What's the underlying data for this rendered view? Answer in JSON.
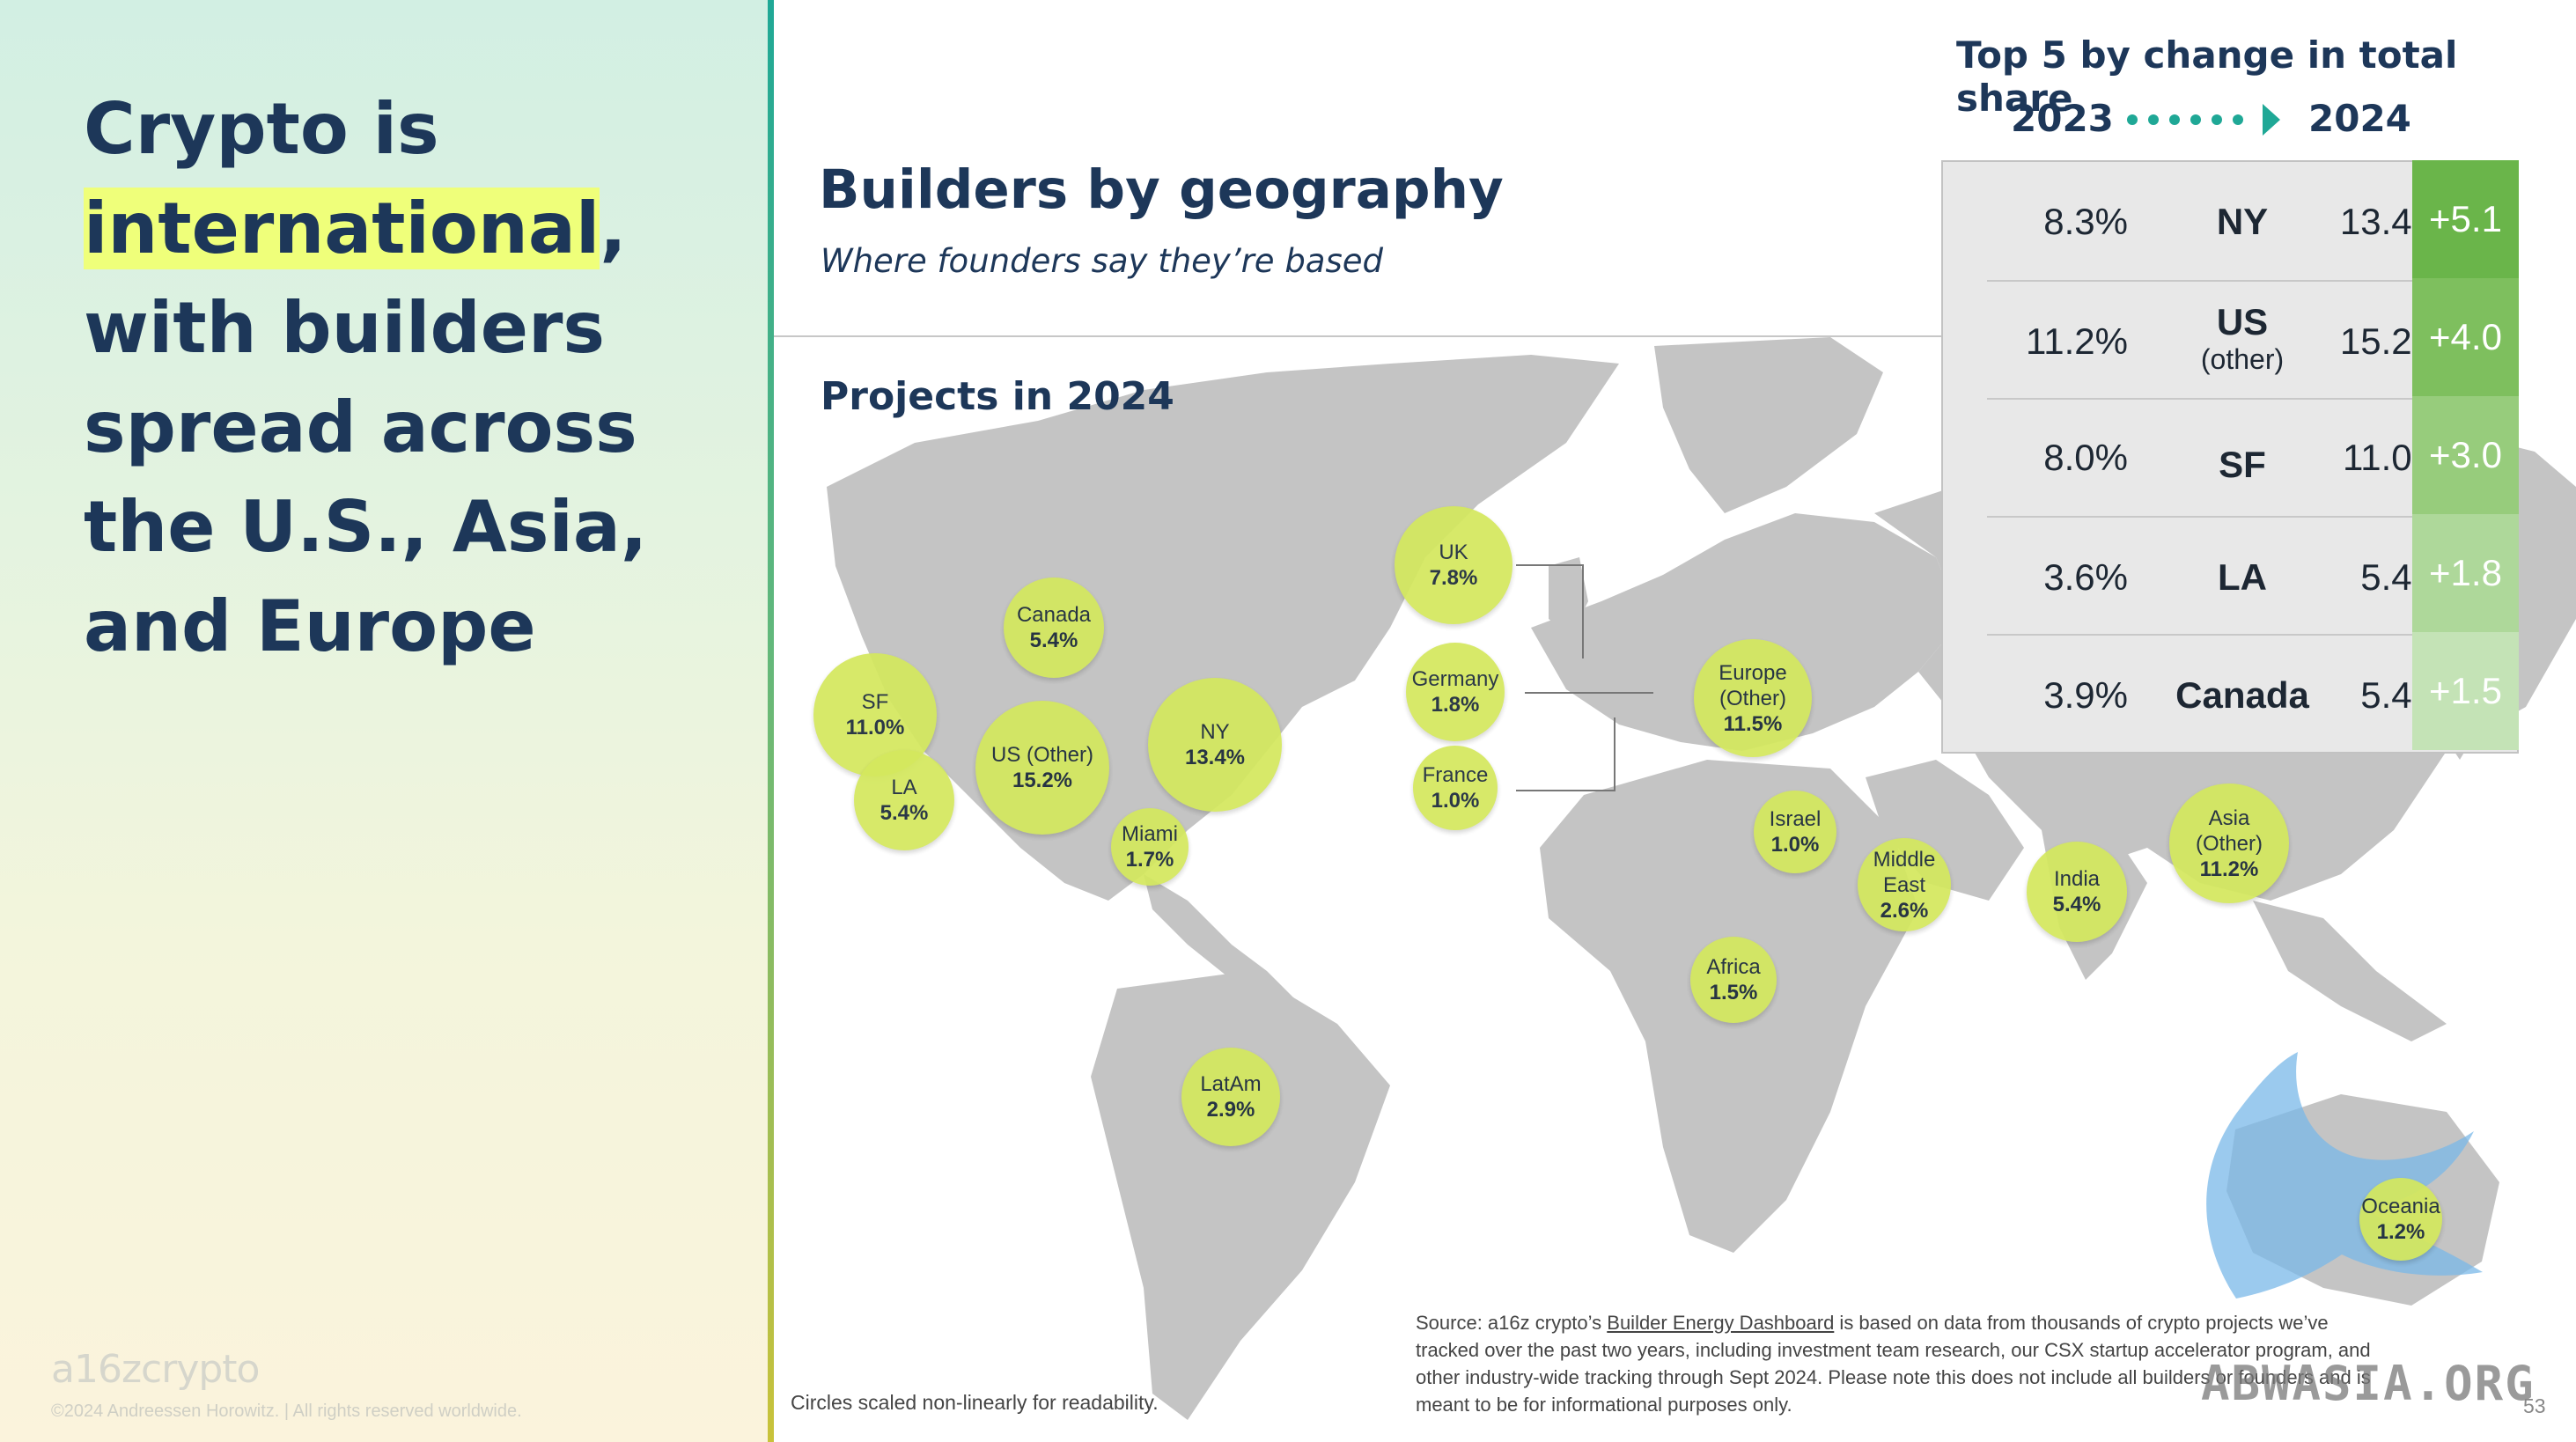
{
  "headline": {
    "before": "Crypto is",
    "highlight": "international",
    "after": ", with builders spread across the U.S., Asia, and Europe"
  },
  "footer": {
    "logo": "a16zcrypto",
    "copyright": "©2024 Andreessen Horowitz.  |  All rights reserved worldwide.",
    "note": "Circles scaled non-linearly for readability.",
    "source_pre": "Source: a16z crypto’s ",
    "source_link": "Builder Energy Dashboard",
    "source_post": " is based on data from thousands of crypto projects we’ve tracked over the past two years, including investment team research, our CSX startup accelerator program, and other industry-wide tracking through Sept 2024. Please note this does not include all builders or founders and is meant to be for informational purposes only.",
    "page_number": "53",
    "watermark": "ABWASIA.ORG"
  },
  "map": {
    "title": "Builders by geography",
    "subtitle": "Where founders say they’re based",
    "projects_label": "Projects in 2024",
    "regions": [
      {
        "name": "UK",
        "value": "7.8%"
      },
      {
        "name": "Canada",
        "value": "5.4%"
      },
      {
        "name": "Germany",
        "value": "1.8%"
      },
      {
        "name": "Europe (Other)",
        "value": "11.5%"
      },
      {
        "name": "SF",
        "value": "11.0%"
      },
      {
        "name": "NY",
        "value": "13.4%"
      },
      {
        "name": "US (Other)",
        "value": "15.2%"
      },
      {
        "name": "LA",
        "value": "5.4%"
      },
      {
        "name": "France",
        "value": "1.0%"
      },
      {
        "name": "Israel",
        "value": "1.0%"
      },
      {
        "name": "Miami",
        "value": "1.7%"
      },
      {
        "name": "Middle East",
        "value": "2.6%"
      },
      {
        "name": "Asia (Other)",
        "value": "11.2%"
      },
      {
        "name": "India",
        "value": "5.4%"
      },
      {
        "name": "Africa",
        "value": "1.5%"
      },
      {
        "name": "LatAm",
        "value": "2.9%"
      },
      {
        "name": "Oceania",
        "value": "1.2%"
      }
    ],
    "bubble_color": "#d4e85e",
    "land_color": "#c4c4c4"
  },
  "top5": {
    "title": "Top 5 by change in total share",
    "year_from": "2023",
    "year_to": "2024",
    "rows": [
      {
        "name": "NY",
        "sub": "",
        "v2023": "8.3%",
        "v2024": "13.4%",
        "change": "+5.1",
        "color": "#6ab54a"
      },
      {
        "name": "US",
        "sub": "(other)",
        "v2023": "11.2%",
        "v2024": "15.2%",
        "change": "+4.0",
        "color": "#7ebf5e"
      },
      {
        "name": "SF",
        "sub": "",
        "v2023": "8.0%",
        "v2024": "11.0%",
        "change": "+3.0",
        "color": "#97cc7c"
      },
      {
        "name": "LA",
        "sub": "",
        "v2023": "3.6%",
        "v2024": "5.4%",
        "change": "+1.8",
        "color": "#aed89a"
      },
      {
        "name": "Canada",
        "sub": "",
        "v2023": "3.9%",
        "v2024": "5.4%",
        "change": "+1.5",
        "color": "#c4e3b6"
      }
    ],
    "accent_color": "#1fa896"
  }
}
